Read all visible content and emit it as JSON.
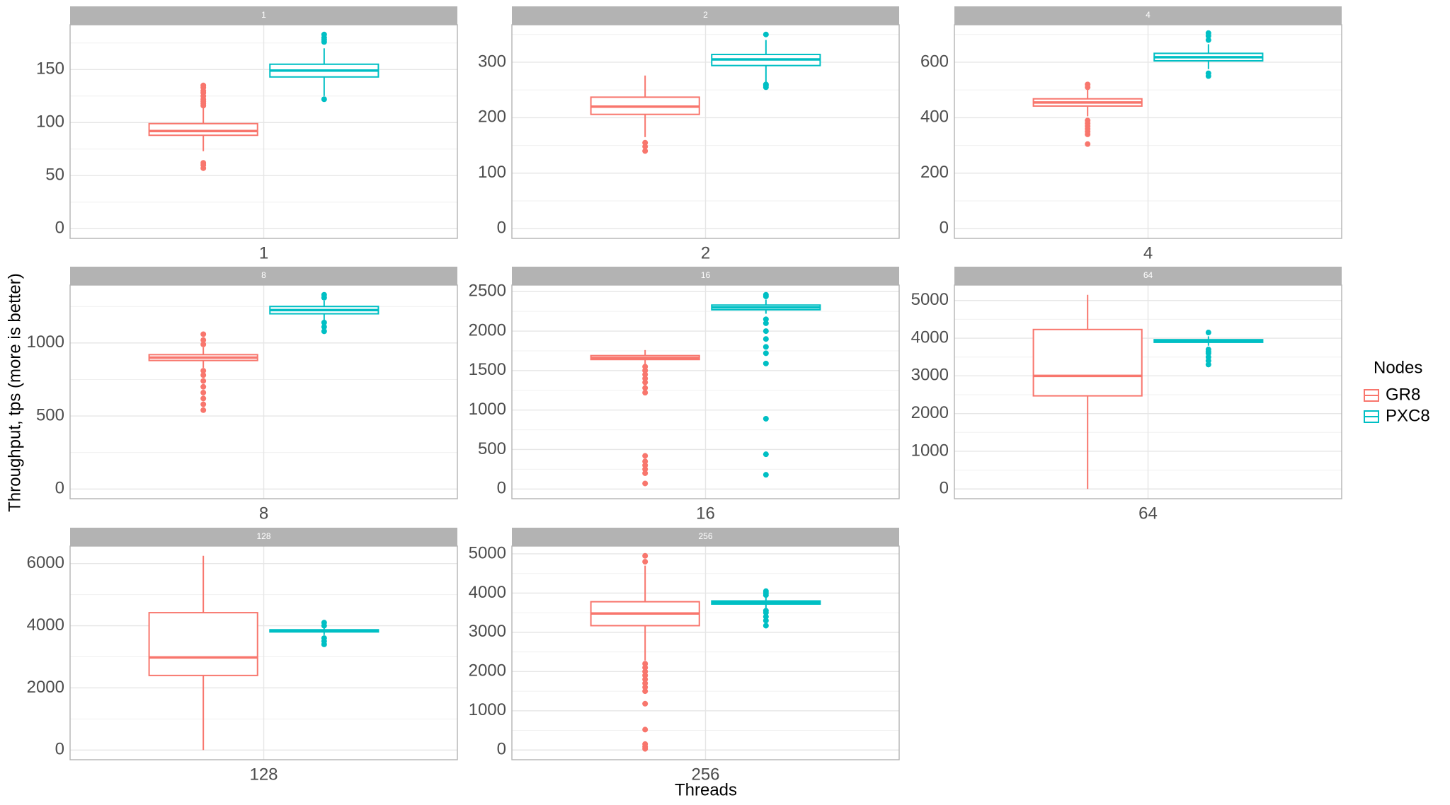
{
  "chart_data": {
    "type": "box",
    "xlabel": "Threads",
    "ylabel": "Throughput, tps (more is better)",
    "legend_title": "Nodes",
    "series": [
      {
        "name": "GR8",
        "color": "#F8766D"
      },
      {
        "name": "PXC8",
        "color": "#00BFC4"
      }
    ],
    "facets": [
      {
        "strip": "1",
        "categories": [
          "1"
        ],
        "ylim": [
          -9.2,
          192.2
        ],
        "yticks": [
          0,
          50,
          100,
          150
        ],
        "yminor": [
          25,
          75,
          125,
          175
        ],
        "boxes": [
          {
            "low": 73,
            "q1": 88,
            "median": 92,
            "q3": 99,
            "high": 114,
            "outliers": [
              57,
              60,
              62,
              116,
              118,
              120,
              122,
              125,
              128,
              130,
              133,
              135
            ]
          },
          {
            "low": 125,
            "q1": 143,
            "median": 149,
            "q3": 155,
            "high": 170,
            "outliers": [
              122,
              176,
              178,
              180,
              183
            ]
          }
        ]
      },
      {
        "strip": "2",
        "categories": [
          "2"
        ],
        "ylim": [
          -17.5,
          367.5
        ],
        "yticks": [
          0,
          100,
          200,
          300
        ],
        "yminor": [
          50,
          150,
          250,
          350
        ],
        "boxes": [
          {
            "low": 165,
            "q1": 206,
            "median": 220,
            "q3": 237,
            "high": 276,
            "outliers": [
              140,
              148,
              155
            ]
          },
          {
            "low": 262,
            "q1": 294,
            "median": 305,
            "q3": 314,
            "high": 340,
            "outliers": [
              255,
              258,
              260,
              350
            ]
          }
        ]
      },
      {
        "strip": "4",
        "categories": [
          "4"
        ],
        "ylim": [
          -35,
          735
        ],
        "yticks": [
          0,
          200,
          400,
          600
        ],
        "yminor": [
          100,
          300,
          500,
          700
        ],
        "boxes": [
          {
            "low": 405,
            "q1": 442,
            "median": 455,
            "q3": 468,
            "high": 505,
            "outliers": [
              305,
              340,
              350,
              360,
              370,
              380,
              390,
              510,
              520
            ]
          },
          {
            "low": 575,
            "q1": 605,
            "median": 618,
            "q3": 632,
            "high": 665,
            "outliers": [
              550,
              560,
              680,
              695,
              705
            ]
          }
        ]
      },
      {
        "strip": "8",
        "categories": [
          "8"
        ],
        "ylim": [
          -66.5,
          1396.5
        ],
        "yticks": [
          0,
          500,
          1000
        ],
        "yminor": [
          250,
          750,
          1250
        ],
        "boxes": [
          {
            "low": 830,
            "q1": 880,
            "median": 900,
            "q3": 920,
            "high": 970,
            "outliers": [
              540,
              580,
              620,
              660,
              700,
              740,
              780,
              810,
              990,
              1020,
              1060
            ]
          },
          {
            "low": 1150,
            "q1": 1200,
            "median": 1225,
            "q3": 1250,
            "high": 1290,
            "outliers": [
              1080,
              1110,
              1140,
              1310,
              1330
            ]
          }
        ]
      },
      {
        "strip": "16",
        "categories": [
          "16"
        ],
        "ylim": [
          -123,
          2583
        ],
        "yticks": [
          0,
          500,
          1000,
          1500,
          2000,
          2500
        ],
        "yminor": [
          250,
          750,
          1250,
          1750,
          2250
        ],
        "boxes": [
          {
            "low": 1580,
            "q1": 1640,
            "median": 1660,
            "q3": 1690,
            "high": 1760,
            "outliers": [
              70,
              200,
              250,
              300,
              350,
              420,
              1220,
              1280,
              1350,
              1400,
              1450,
              1500,
              1550
            ]
          },
          {
            "low": 2220,
            "q1": 2270,
            "median": 2300,
            "q3": 2330,
            "high": 2400,
            "outliers": [
              180,
              440,
              890,
              1590,
              1720,
              1800,
              1900,
              2000,
              2100,
              2150,
              2440,
              2460
            ]
          }
        ]
      },
      {
        "strip": "64",
        "categories": [
          "64"
        ],
        "ylim": [
          -258,
          5408
        ],
        "yticks": [
          0,
          1000,
          2000,
          3000,
          4000,
          5000
        ],
        "yminor": [
          500,
          1500,
          2500,
          3500,
          4500
        ],
        "boxes": [
          {
            "low": 0,
            "q1": 2470,
            "median": 3000,
            "q3": 4230,
            "high": 5150,
            "outliers": []
          },
          {
            "low": 3800,
            "q1": 3890,
            "median": 3920,
            "q3": 3960,
            "high": 4050,
            "outliers": [
              3300,
              3400,
              3500,
              3600,
              3650,
              3700,
              4150
            ]
          }
        ]
      },
      {
        "strip": "128",
        "categories": [
          "128"
        ],
        "ylim": [
          -312,
          6562
        ],
        "yticks": [
          0,
          2000,
          4000,
          6000
        ],
        "yminor": [
          1000,
          3000,
          5000
        ],
        "boxes": [
          {
            "low": 0,
            "q1": 2400,
            "median": 2980,
            "q3": 4420,
            "high": 6250,
            "outliers": []
          },
          {
            "low": 3700,
            "q1": 3800,
            "median": 3840,
            "q3": 3870,
            "high": 3970,
            "outliers": [
              3400,
              3500,
              3600,
              4000,
              4100
            ]
          }
        ]
      },
      {
        "strip": "256",
        "categories": [
          "256"
        ],
        "ylim": [
          -248,
          5198
        ],
        "yticks": [
          0,
          1000,
          2000,
          3000,
          4000,
          5000
        ],
        "yminor": [
          500,
          1500,
          2500,
          3500,
          4500
        ],
        "boxes": [
          {
            "low": 2280,
            "q1": 3170,
            "median": 3480,
            "q3": 3780,
            "high": 4700,
            "outliers": [
              30,
              80,
              150,
              520,
              1180,
              1500,
              1600,
              1700,
              1800,
              1900,
              2000,
              2100,
              2200,
              4800,
              4950
            ]
          },
          {
            "low": 3620,
            "q1": 3720,
            "median": 3760,
            "q3": 3800,
            "high": 3900,
            "outliers": [
              3170,
              3300,
              3400,
              3500,
              3550,
              3950,
              4000,
              4050
            ]
          }
        ]
      }
    ]
  }
}
